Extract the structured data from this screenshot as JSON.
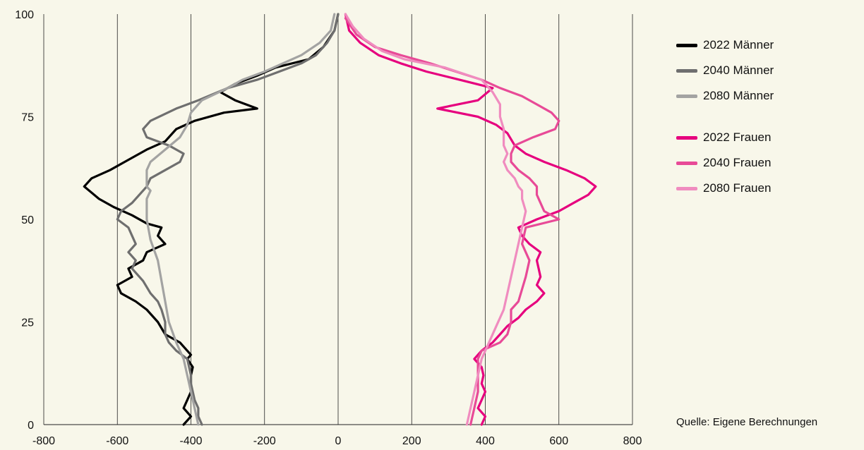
{
  "chart_data": {
    "type": "line",
    "orientation": "horizontal",
    "xlim": [
      -800,
      800
    ],
    "ylim": [
      0,
      100
    ],
    "x_ticks": [
      "-800",
      "-600",
      "-400",
      "-200",
      "0",
      "200",
      "400",
      "600",
      "800"
    ],
    "y_ticks": [
      "0",
      "25",
      "50",
      "75",
      "100"
    ],
    "grid": "vertical",
    "legend_position": "right",
    "source": "Quelle: Eigene Berechnungen",
    "series": [
      {
        "name": "2022 Männer",
        "color": "#000000",
        "points": [
          [
            -420,
            0
          ],
          [
            -400,
            2
          ],
          [
            -420,
            4
          ],
          [
            -410,
            6
          ],
          [
            -400,
            8
          ],
          [
            -400,
            10
          ],
          [
            -400,
            12
          ],
          [
            -395,
            14
          ],
          [
            -410,
            16
          ],
          [
            -400,
            17
          ],
          [
            -420,
            19
          ],
          [
            -430,
            20
          ],
          [
            -470,
            22
          ],
          [
            -490,
            25
          ],
          [
            -520,
            28
          ],
          [
            -550,
            30
          ],
          [
            -590,
            32
          ],
          [
            -600,
            34
          ],
          [
            -560,
            36
          ],
          [
            -570,
            38
          ],
          [
            -530,
            40
          ],
          [
            -520,
            42
          ],
          [
            -470,
            44
          ],
          [
            -490,
            46
          ],
          [
            -480,
            48
          ],
          [
            -520,
            49
          ],
          [
            -560,
            51
          ],
          [
            -610,
            53
          ],
          [
            -650,
            55
          ],
          [
            -690,
            58
          ],
          [
            -670,
            60
          ],
          [
            -620,
            62
          ],
          [
            -580,
            64
          ],
          [
            -520,
            67
          ],
          [
            -470,
            69
          ],
          [
            -440,
            72
          ],
          [
            -390,
            74
          ],
          [
            -310,
            76
          ],
          [
            -220,
            77
          ],
          [
            -280,
            79
          ],
          [
            -320,
            81
          ],
          [
            -280,
            83
          ],
          [
            -220,
            85
          ],
          [
            -170,
            87
          ],
          [
            -80,
            89
          ],
          [
            -40,
            92
          ],
          [
            -10,
            96
          ],
          [
            0,
            100
          ]
        ]
      },
      {
        "name": "2040 Männer",
        "color": "#6f6f6f",
        "points": [
          [
            -370,
            0
          ],
          [
            -380,
            2
          ],
          [
            -380,
            4
          ],
          [
            -390,
            6
          ],
          [
            -395,
            8
          ],
          [
            -400,
            10
          ],
          [
            -400,
            12
          ],
          [
            -405,
            14
          ],
          [
            -410,
            16
          ],
          [
            -440,
            18
          ],
          [
            -460,
            20
          ],
          [
            -470,
            22
          ],
          [
            -470,
            25
          ],
          [
            -480,
            28
          ],
          [
            -490,
            30
          ],
          [
            -510,
            32
          ],
          [
            -530,
            35
          ],
          [
            -560,
            38
          ],
          [
            -550,
            40
          ],
          [
            -570,
            42
          ],
          [
            -550,
            44
          ],
          [
            -560,
            46
          ],
          [
            -570,
            48
          ],
          [
            -600,
            50
          ],
          [
            -590,
            52
          ],
          [
            -560,
            54
          ],
          [
            -540,
            56
          ],
          [
            -520,
            58
          ],
          [
            -510,
            60
          ],
          [
            -470,
            62
          ],
          [
            -430,
            64
          ],
          [
            -420,
            66
          ],
          [
            -460,
            68
          ],
          [
            -520,
            70
          ],
          [
            -530,
            72
          ],
          [
            -510,
            74
          ],
          [
            -440,
            77
          ],
          [
            -380,
            79
          ],
          [
            -300,
            82
          ],
          [
            -220,
            84
          ],
          [
            -160,
            86
          ],
          [
            -100,
            88
          ],
          [
            -60,
            90
          ],
          [
            -30,
            93
          ],
          [
            -10,
            96
          ],
          [
            0,
            100
          ]
        ]
      },
      {
        "name": "2080 Männer",
        "color": "#a3a3a2",
        "points": [
          [
            -380,
            0
          ],
          [
            -390,
            4
          ],
          [
            -400,
            8
          ],
          [
            -410,
            12
          ],
          [
            -420,
            16
          ],
          [
            -440,
            20
          ],
          [
            -460,
            25
          ],
          [
            -470,
            30
          ],
          [
            -480,
            35
          ],
          [
            -490,
            40
          ],
          [
            -510,
            45
          ],
          [
            -520,
            50
          ],
          [
            -520,
            55
          ],
          [
            -510,
            57
          ],
          [
            -520,
            58
          ],
          [
            -520,
            60
          ],
          [
            -520,
            62
          ],
          [
            -510,
            64
          ],
          [
            -470,
            67
          ],
          [
            -430,
            70
          ],
          [
            -410,
            73
          ],
          [
            -400,
            76
          ],
          [
            -370,
            79
          ],
          [
            -300,
            82
          ],
          [
            -260,
            84
          ],
          [
            -200,
            86
          ],
          [
            -150,
            88
          ],
          [
            -100,
            90
          ],
          [
            -50,
            93
          ],
          [
            -20,
            96
          ],
          [
            -10,
            100
          ]
        ]
      },
      {
        "name": "2022 Frauen",
        "color": "#e6007e",
        "points": [
          [
            390,
            0
          ],
          [
            400,
            2
          ],
          [
            380,
            4
          ],
          [
            390,
            6
          ],
          [
            400,
            8
          ],
          [
            390,
            10
          ],
          [
            395,
            12
          ],
          [
            390,
            14
          ],
          [
            370,
            16
          ],
          [
            390,
            18
          ],
          [
            420,
            20
          ],
          [
            440,
            22
          ],
          [
            460,
            24
          ],
          [
            490,
            26
          ],
          [
            510,
            28
          ],
          [
            540,
            30
          ],
          [
            560,
            32
          ],
          [
            540,
            34
          ],
          [
            550,
            36
          ],
          [
            540,
            40
          ],
          [
            550,
            42
          ],
          [
            520,
            44
          ],
          [
            500,
            46
          ],
          [
            490,
            48
          ],
          [
            540,
            50
          ],
          [
            600,
            52
          ],
          [
            640,
            54
          ],
          [
            680,
            56
          ],
          [
            700,
            58
          ],
          [
            670,
            60
          ],
          [
            620,
            62
          ],
          [
            560,
            64
          ],
          [
            510,
            66
          ],
          [
            480,
            68
          ],
          [
            460,
            71
          ],
          [
            430,
            73
          ],
          [
            380,
            75
          ],
          [
            270,
            77
          ],
          [
            380,
            79
          ],
          [
            420,
            82
          ],
          [
            330,
            84
          ],
          [
            240,
            86
          ],
          [
            170,
            88
          ],
          [
            110,
            90
          ],
          [
            60,
            93
          ],
          [
            30,
            96
          ],
          [
            20,
            100
          ]
        ]
      },
      {
        "name": "2040 Frauen",
        "color": "#e84a97",
        "points": [
          [
            360,
            0
          ],
          [
            370,
            4
          ],
          [
            380,
            8
          ],
          [
            380,
            12
          ],
          [
            380,
            16
          ],
          [
            390,
            18
          ],
          [
            440,
            20
          ],
          [
            460,
            22
          ],
          [
            470,
            25
          ],
          [
            470,
            28
          ],
          [
            490,
            30
          ],
          [
            500,
            33
          ],
          [
            510,
            36
          ],
          [
            520,
            40
          ],
          [
            500,
            44
          ],
          [
            510,
            48
          ],
          [
            600,
            50
          ],
          [
            560,
            52
          ],
          [
            550,
            54
          ],
          [
            540,
            56
          ],
          [
            540,
            58
          ],
          [
            520,
            60
          ],
          [
            490,
            62
          ],
          [
            470,
            64
          ],
          [
            470,
            66
          ],
          [
            480,
            68
          ],
          [
            530,
            70
          ],
          [
            590,
            72
          ],
          [
            600,
            74
          ],
          [
            580,
            76
          ],
          [
            540,
            78
          ],
          [
            500,
            80
          ],
          [
            440,
            82
          ],
          [
            390,
            84
          ],
          [
            320,
            86
          ],
          [
            250,
            88
          ],
          [
            170,
            90
          ],
          [
            100,
            92
          ],
          [
            50,
            95
          ],
          [
            20,
            99
          ]
        ]
      },
      {
        "name": "2080 Frauen",
        "color": "#f08cbf",
        "points": [
          [
            350,
            0
          ],
          [
            360,
            4
          ],
          [
            370,
            8
          ],
          [
            380,
            12
          ],
          [
            390,
            16
          ],
          [
            410,
            20
          ],
          [
            430,
            24
          ],
          [
            450,
            28
          ],
          [
            460,
            32
          ],
          [
            470,
            36
          ],
          [
            480,
            40
          ],
          [
            490,
            44
          ],
          [
            500,
            48
          ],
          [
            510,
            52
          ],
          [
            500,
            55
          ],
          [
            500,
            57
          ],
          [
            490,
            58
          ],
          [
            480,
            60
          ],
          [
            460,
            62
          ],
          [
            450,
            64
          ],
          [
            460,
            66
          ],
          [
            450,
            68
          ],
          [
            450,
            70
          ],
          [
            450,
            72
          ],
          [
            440,
            75
          ],
          [
            440,
            78
          ],
          [
            420,
            81
          ],
          [
            390,
            84
          ],
          [
            290,
            87
          ],
          [
            180,
            89
          ],
          [
            120,
            91
          ],
          [
            70,
            94
          ],
          [
            40,
            97
          ],
          [
            20,
            100
          ]
        ]
      }
    ]
  }
}
